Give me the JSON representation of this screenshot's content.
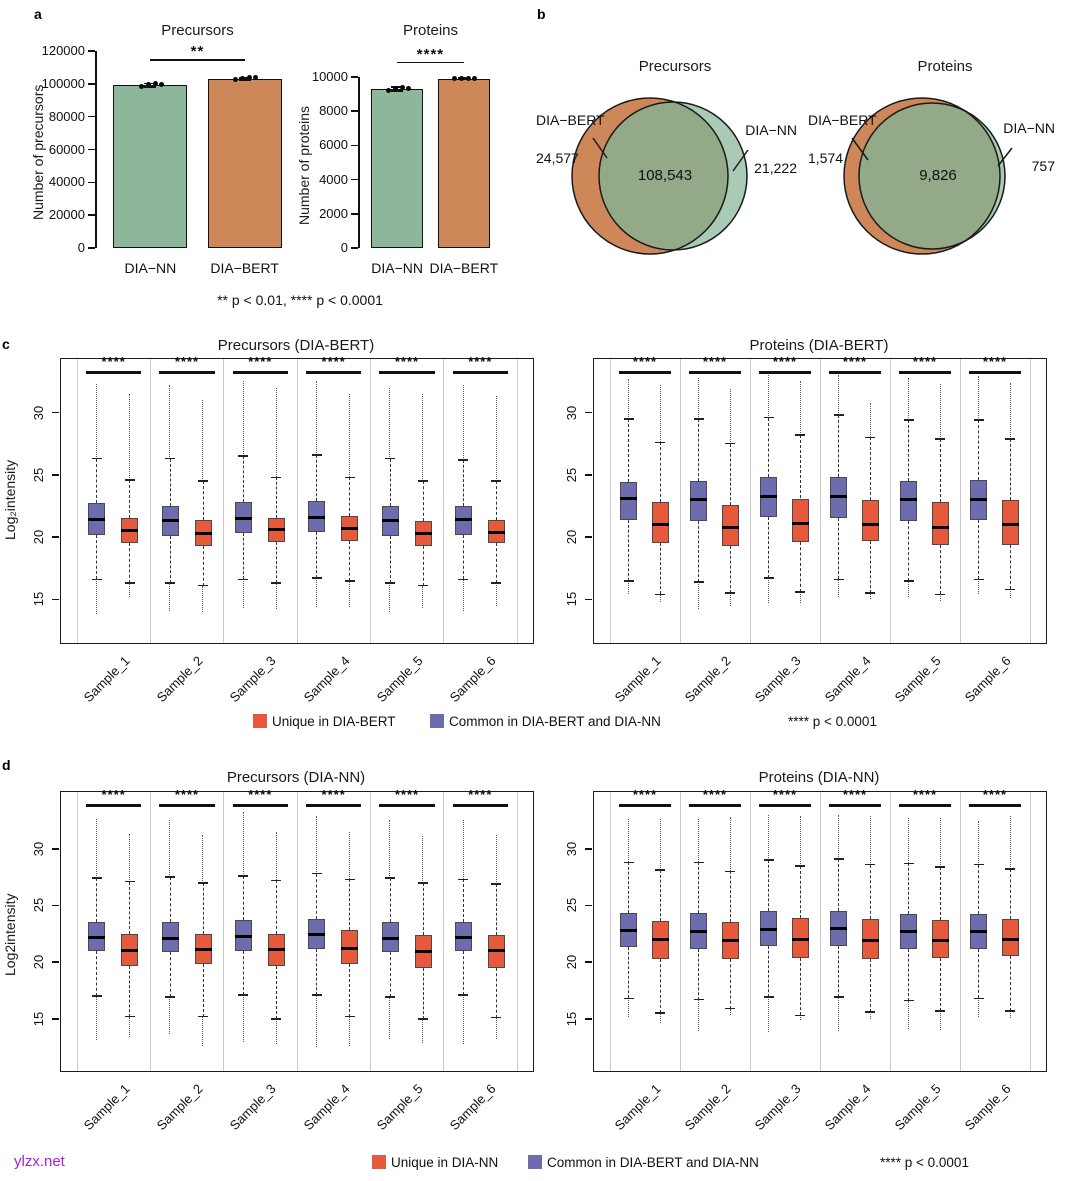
{
  "panels": {
    "a": "a",
    "b": "b",
    "c": "c",
    "d": "d"
  },
  "panel_a_caption": "** p < 0.01, **** p < 0.0001",
  "watermark": {
    "text": "ylzx.net",
    "color": "#A322DB"
  },
  "colors": {
    "green": "#8DB79A",
    "orange": "#CE8759",
    "venn_overlap": "#94A987",
    "venn_green": "#A9CBB5",
    "box_blue": "#6C6CAE",
    "box_red": "#E6593B"
  },
  "legends": {
    "c": {
      "items": [
        {
          "color": "#E6593B",
          "label": "Unique in DIA-BERT"
        },
        {
          "color": "#6C6CAE",
          "label": "Common in DIA-BERT and DIA-NN"
        }
      ],
      "note": "**** p < 0.0001"
    },
    "d": {
      "items": [
        {
          "color": "#E6593B",
          "label": "Unique in DIA-NN"
        },
        {
          "color": "#6C6CAE",
          "label": "Common in DIA-BERT and DIA-NN"
        }
      ],
      "note": "**** p < 0.0001"
    }
  },
  "chart_data": [
    {
      "id": "a-precursors",
      "type": "bar",
      "title": "Precursors",
      "ylabel": "Number of precursors",
      "categories": [
        "DIA−NN",
        "DIA−BERT"
      ],
      "values": [
        99200,
        103100
      ],
      "errors": [
        1100,
        600
      ],
      "points": [
        [
          98600,
          99400,
          100000,
          99700
        ],
        [
          102500,
          103300,
          103600,
          103800
        ]
      ],
      "ylim": [
        0,
        120000
      ],
      "yticks": [
        0,
        20000,
        40000,
        60000,
        80000,
        100000,
        120000
      ],
      "bar_colors": [
        "#8DB79A",
        "#CE8759"
      ],
      "significance": "**",
      "sig_v": 115000
    },
    {
      "id": "a-proteins",
      "type": "bar",
      "title": "Proteins",
      "ylabel": "Number of proteins",
      "categories": [
        "DIA−NN",
        "DIA−BERT"
      ],
      "values": [
        9290,
        9900
      ],
      "errors": [
        110,
        50
      ],
      "points": [
        [
          9230,
          9300,
          9360,
          9330
        ],
        [
          9890,
          9920,
          9940,
          9910
        ]
      ],
      "ylim": [
        0,
        10000
      ],
      "yticks": [
        0,
        2000,
        4000,
        6000,
        8000,
        10000
      ],
      "bar_colors": [
        "#8DB79A",
        "#CE8759"
      ],
      "significance": "****",
      "sig_v": 10900
    },
    {
      "id": "b-precursors",
      "type": "venn",
      "title": "Precursors",
      "sets": [
        {
          "label": "DIA−BERT",
          "value": "24,577"
        },
        {
          "label": "DIA−NN",
          "value": "21,222"
        }
      ],
      "overlap": "108,543"
    },
    {
      "id": "b-proteins",
      "type": "venn",
      "title": "Proteins",
      "sets": [
        {
          "label": "DIA−BERT",
          "value": "1,574"
        },
        {
          "label": "DIA−NN",
          "value": "757"
        }
      ],
      "overlap": "9,826"
    },
    {
      "id": "c-precursors",
      "type": "boxplot",
      "title": "Precursors (DIA-BERT)",
      "ylabel": "Log₂intensity",
      "categories": [
        "Sample_1",
        "Sample_2",
        "Sample_3",
        "Sample_4",
        "Sample_5",
        "Sample_6"
      ],
      "ylim": [
        11.5,
        34.3
      ],
      "yticks": [
        15,
        20,
        25,
        30
      ],
      "significance": "****",
      "sig_v": 33.3,
      "box_format": [
        "q1",
        "median",
        "q3",
        "whisker_low",
        "whisker_high",
        "outlier_low",
        "outlier_high"
      ],
      "series": [
        {
          "name": "Common in DIA-BERT and DIA-NN",
          "color": "#6C6CAE",
          "boxes": [
            [
              20.2,
              21.4,
              22.7,
              16.6,
              26.3,
              13.8,
              32.3
            ],
            [
              20.1,
              21.3,
              22.5,
              16.3,
              26.3,
              14.1,
              32.2
            ],
            [
              20.3,
              21.5,
              22.8,
              16.6,
              26.5,
              14.3,
              32.5
            ],
            [
              20.4,
              21.6,
              22.9,
              16.7,
              26.6,
              14.4,
              32.5
            ],
            [
              20.1,
              21.3,
              22.5,
              16.3,
              26.3,
              14.0,
              32.0
            ],
            [
              20.2,
              21.4,
              22.5,
              16.6,
              26.2,
              14.1,
              32.2
            ]
          ]
        },
        {
          "name": "Unique in DIA-BERT",
          "color": "#E6593B",
          "boxes": [
            [
              19.5,
              20.5,
              21.5,
              16.3,
              24.6,
              15.2,
              31.5
            ],
            [
              19.3,
              20.3,
              21.4,
              16.1,
              24.5,
              14.0,
              31.0
            ],
            [
              19.6,
              20.6,
              21.5,
              16.3,
              24.8,
              14.2,
              32.0
            ],
            [
              19.7,
              20.7,
              21.7,
              16.5,
              24.8,
              14.4,
              31.5
            ],
            [
              19.3,
              20.3,
              21.3,
              16.1,
              24.5,
              14.3,
              31.5
            ],
            [
              19.5,
              20.4,
              21.4,
              16.3,
              24.5,
              14.5,
              31.3
            ]
          ]
        }
      ]
    },
    {
      "id": "c-proteins",
      "type": "boxplot",
      "title": "Proteins (DIA-BERT)",
      "ylabel": "",
      "categories": [
        "Sample_1",
        "Sample_2",
        "Sample_3",
        "Sample_4",
        "Sample_5",
        "Sample_6"
      ],
      "ylim": [
        11.5,
        34.3
      ],
      "yticks": [
        15,
        20,
        25,
        30
      ],
      "significance": "****",
      "sig_v": 33.3,
      "box_format": [
        "q1",
        "median",
        "q3",
        "whisker_low",
        "whisker_high",
        "outlier_low",
        "outlier_high"
      ],
      "series": [
        {
          "name": "Common in DIA-BERT and DIA-NN",
          "color": "#6C6CAE",
          "boxes": [
            [
              21.4,
              23.1,
              24.4,
              16.5,
              29.5,
              15.4,
              32.7
            ],
            [
              21.3,
              23.0,
              24.5,
              16.4,
              29.5,
              14.2,
              32.8
            ],
            [
              21.6,
              23.3,
              24.8,
              16.7,
              29.6,
              14.7,
              33.0
            ],
            [
              21.5,
              23.3,
              24.8,
              16.6,
              29.8,
              15.2,
              33.0
            ],
            [
              21.3,
              23.0,
              24.5,
              16.5,
              29.4,
              15.2,
              32.8
            ],
            [
              21.4,
              23.0,
              24.6,
              16.6,
              29.4,
              15.4,
              32.9
            ]
          ]
        },
        {
          "name": "Unique in DIA-BERT",
          "color": "#E6593B",
          "boxes": [
            [
              19.5,
              21.0,
              22.8,
              15.4,
              27.6,
              14.8,
              32.2
            ],
            [
              19.3,
              20.8,
              22.6,
              15.5,
              27.5,
              14.5,
              31.9
            ],
            [
              19.6,
              21.1,
              23.1,
              15.6,
              28.2,
              14.7,
              32.5
            ],
            [
              19.7,
              21.0,
              23.0,
              15.5,
              28.0,
              15.0,
              30.8
            ],
            [
              19.4,
              20.8,
              22.8,
              15.4,
              27.9,
              14.9,
              32.3
            ],
            [
              19.4,
              21.0,
              23.0,
              15.8,
              27.9,
              15.1,
              32.4
            ]
          ]
        }
      ]
    },
    {
      "id": "d-precursors",
      "type": "boxplot",
      "title": "Precursors (DIA-NN)",
      "ylabel": "Log2intensity",
      "categories": [
        "Sample_1",
        "Sample_2",
        "Sample_3",
        "Sample_4",
        "Sample_5",
        "Sample_6"
      ],
      "ylim": [
        10.4,
        35.0
      ],
      "yticks": [
        15,
        20,
        25,
        30
      ],
      "significance": "****",
      "sig_v": 33.9,
      "box_format": [
        "q1",
        "median",
        "q3",
        "whisker_low",
        "whisker_high",
        "outlier_low",
        "outlier_high"
      ],
      "series": [
        {
          "name": "Common in DIA-BERT and DIA-NN",
          "color": "#6C6CAE",
          "boxes": [
            [
              21.0,
              22.2,
              23.5,
              17.0,
              27.4,
              13.1,
              32.6
            ],
            [
              20.9,
              22.1,
              23.5,
              16.9,
              27.5,
              13.7,
              32.5
            ],
            [
              21.0,
              22.3,
              23.7,
              17.1,
              27.6,
              13.0,
              33.2
            ],
            [
              21.2,
              22.4,
              23.8,
              17.1,
              27.8,
              12.5,
              32.9
            ],
            [
              20.9,
              22.1,
              23.5,
              16.9,
              27.4,
              13.2,
              32.5
            ],
            [
              21.0,
              22.2,
              23.5,
              17.1,
              27.3,
              12.8,
              32.5
            ]
          ]
        },
        {
          "name": "Unique in DIA-NN",
          "color": "#E6593B",
          "boxes": [
            [
              19.7,
              21.0,
              22.5,
              15.2,
              27.1,
              13.4,
              31.3
            ],
            [
              19.8,
              21.1,
              22.5,
              15.2,
              27.0,
              12.6,
              31.2
            ],
            [
              19.7,
              21.1,
              22.5,
              15.0,
              27.2,
              12.8,
              31.5
            ],
            [
              19.8,
              21.2,
              22.8,
              15.2,
              27.3,
              12.6,
              31.5
            ],
            [
              19.5,
              20.9,
              22.4,
              15.0,
              27.0,
              12.9,
              31.1
            ],
            [
              19.5,
              21.0,
              22.4,
              15.1,
              26.9,
              13.2,
              31.2
            ]
          ]
        }
      ]
    },
    {
      "id": "d-proteins",
      "type": "boxplot",
      "title": "Proteins (DIA-NN)",
      "ylabel": "",
      "categories": [
        "Sample_1",
        "Sample_2",
        "Sample_3",
        "Sample_4",
        "Sample_5",
        "Sample_6"
      ],
      "ylim": [
        10.4,
        35.0
      ],
      "yticks": [
        15,
        20,
        25,
        30
      ],
      "significance": "****",
      "sig_v": 33.9,
      "box_format": [
        "q1",
        "median",
        "q3",
        "whisker_low",
        "whisker_high",
        "outlier_low",
        "outlier_high"
      ],
      "series": [
        {
          "name": "Common in DIA-BERT and DIA-NN",
          "color": "#6C6CAE",
          "boxes": [
            [
              21.3,
              22.8,
              24.3,
              16.8,
              28.8,
              15.2,
              32.6
            ],
            [
              21.2,
              22.7,
              24.3,
              16.7,
              28.8,
              13.9,
              32.6
            ],
            [
              21.4,
              22.9,
              24.5,
              16.9,
              29.0,
              13.8,
              33.0
            ],
            [
              21.4,
              23.0,
              24.5,
              16.9,
              29.1,
              13.9,
              33.0
            ],
            [
              21.2,
              22.7,
              24.2,
              16.6,
              28.7,
              14.1,
              32.7
            ],
            [
              21.2,
              22.7,
              24.2,
              16.8,
              28.6,
              15.2,
              32.4
            ]
          ]
        },
        {
          "name": "Unique in DIA-NN",
          "color": "#E6593B",
          "boxes": [
            [
              20.3,
              22.0,
              23.6,
              15.5,
              28.1,
              14.6,
              32.6
            ],
            [
              20.3,
              21.9,
              23.5,
              15.9,
              28.0,
              15.3,
              32.8
            ],
            [
              20.4,
              22.0,
              23.9,
              15.3,
              28.5,
              14.9,
              32.9
            ],
            [
              20.3,
              21.9,
              23.8,
              15.6,
              28.6,
              15.0,
              32.9
            ],
            [
              20.4,
              21.9,
              23.7,
              15.7,
              28.4,
              14.0,
              32.7
            ],
            [
              20.5,
              22.0,
              23.8,
              15.7,
              28.2,
              15.1,
              32.9
            ]
          ]
        }
      ]
    }
  ]
}
